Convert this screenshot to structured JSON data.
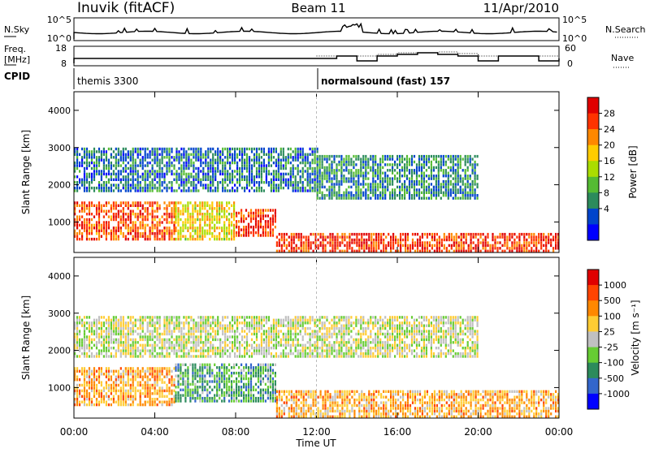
{
  "header": {
    "station": "Inuvik (fitACF)",
    "beam": "Beam 11",
    "date": "11/Apr/2010"
  },
  "top_panels": {
    "nsky_label": "N.Sky",
    "nsky_ticks": [
      "10^5",
      "10^0"
    ],
    "nsearch_label": "N.Search",
    "nsearch_ticks": [
      "10^5",
      "10^0"
    ],
    "freq_label_line1": "Freq.",
    "freq_label_line2": "[MHz]",
    "freq_ticks": [
      "18",
      "8"
    ],
    "nave_label": "Nave",
    "nave_ticks": [
      "60",
      "0"
    ],
    "cpid_label": "CPID",
    "cpid_segments": [
      {
        "start_hr": 0,
        "end_hr": 12,
        "label": "themis 3300"
      },
      {
        "start_hr": 12,
        "end_hr": 24,
        "label": "normalsound (fast) 157"
      }
    ]
  },
  "axes": {
    "x_ticks": [
      "00:00",
      "04:00",
      "08:00",
      "12:00",
      "16:00",
      "20:00",
      "00:00"
    ],
    "x_tick_hours": [
      0,
      4,
      8,
      12,
      16,
      20,
      24
    ],
    "x_label": "Time UT",
    "y_label": "Slant Range [km]",
    "y_ticks": [
      "1000",
      "2000",
      "3000",
      "4000"
    ],
    "y_tick_values": [
      1000,
      2000,
      3000,
      4000
    ],
    "y_range": [
      180,
      4500
    ],
    "x_range_hr": [
      0,
      24
    ]
  },
  "chart_data": [
    {
      "type": "heatmap",
      "panel": "power",
      "colorbar_label": "Power [dB]",
      "colorbar_ticks": [
        "28",
        "24",
        "20",
        "16",
        "12",
        "8",
        "4"
      ],
      "colorbar_colors": [
        "#0000ff",
        "#0044cc",
        "#2c8b5c",
        "#55bb33",
        "#aadd00",
        "#ffcc00",
        "#ff8800",
        "#ff3300",
        "#e00000"
      ],
      "bands": [
        {
          "start_hr": 0.0,
          "end_hr": 5.0,
          "range": [
            500,
            1500
          ],
          "level": 0.85
        },
        {
          "start_hr": 5.0,
          "end_hr": 8.0,
          "range": [
            500,
            1500
          ],
          "level": 0.6
        },
        {
          "start_hr": 8.0,
          "end_hr": 10.0,
          "range": [
            600,
            1300
          ],
          "level": 0.9
        },
        {
          "start_hr": 10.0,
          "end_hr": 24.0,
          "range": [
            180,
            700
          ],
          "level": 0.9
        },
        {
          "start_hr": 0.0,
          "end_hr": 12.0,
          "range": [
            1800,
            3000
          ],
          "level": 0.2
        },
        {
          "start_hr": 12.0,
          "end_hr": 20.0,
          "range": [
            1600,
            2800
          ],
          "level": 0.25
        }
      ]
    },
    {
      "type": "heatmap",
      "panel": "velocity",
      "colorbar_label": "Velocity [m s⁻¹]",
      "colorbar_ticks": [
        "1000",
        "500",
        "100",
        "25",
        "-25",
        "-100",
        "-500",
        "-1000"
      ],
      "colorbar_colors": [
        "#0000ff",
        "#3366cc",
        "#2c8b5c",
        "#66cc33",
        "#c0c0c0",
        "#ffcc33",
        "#ff8800",
        "#ff4400",
        "#e00000"
      ],
      "bands": [
        {
          "start_hr": 0.0,
          "end_hr": 5.0,
          "range": [
            500,
            1500
          ],
          "level": 0.7
        },
        {
          "start_hr": 5.0,
          "end_hr": 10.0,
          "range": [
            600,
            1600
          ],
          "level": 0.3
        },
        {
          "start_hr": 10.0,
          "end_hr": 24.0,
          "range": [
            180,
            900
          ],
          "level": 0.68
        },
        {
          "start_hr": 0.0,
          "end_hr": 20.0,
          "range": [
            1800,
            2900
          ],
          "level": 0.5
        }
      ]
    }
  ]
}
